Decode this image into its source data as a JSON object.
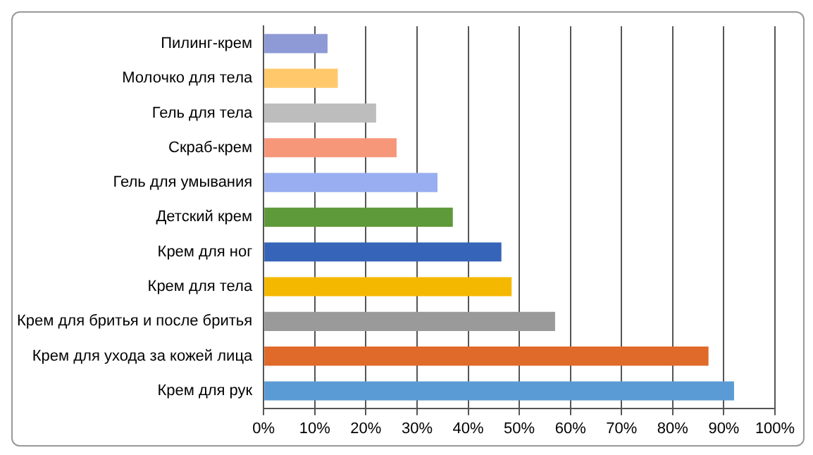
{
  "chart_data": {
    "type": "bar",
    "orientation": "horizontal",
    "categories": [
      "Пилинг-крем",
      "Молочко для тела",
      "Гель для тела",
      "Скраб-крем",
      "Гель для умывания",
      "Детский крем",
      "Крем для ног",
      "Крем для тела",
      "Крем для бритья и после бритья",
      "Крем для ухода за кожей лица",
      "Крем для рук"
    ],
    "values": [
      12.5,
      14.5,
      22,
      26,
      34,
      37,
      46.5,
      48.5,
      57,
      87,
      92
    ],
    "colors": [
      "#8e9ad6",
      "#ffc96b",
      "#bdbdbd",
      "#f7977a",
      "#98aef0",
      "#5f9a3a",
      "#3564b8",
      "#f5b800",
      "#9a9a9a",
      "#e06a2a",
      "#5b9bd5"
    ],
    "xlim": [
      0,
      100
    ],
    "xticks": [
      {
        "value": 0,
        "label": "0%"
      },
      {
        "value": 10,
        "label": "10%"
      },
      {
        "value": 20,
        "label": "20%"
      },
      {
        "value": 30,
        "label": "30%"
      },
      {
        "value": 40,
        "label": "40%"
      },
      {
        "value": 50,
        "label": "50%"
      },
      {
        "value": 60,
        "label": "60%"
      },
      {
        "value": 70,
        "label": "70%"
      },
      {
        "value": 80,
        "label": "80%"
      },
      {
        "value": 90,
        "label": "90%"
      },
      {
        "value": 100,
        "label": "100%"
      }
    ],
    "grid": "x",
    "legend": false
  }
}
